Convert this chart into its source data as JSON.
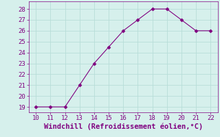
{
  "x": [
    10,
    11,
    12,
    13,
    14,
    15,
    16,
    17,
    18,
    19,
    20,
    21,
    22
  ],
  "y": [
    19,
    19,
    19,
    21,
    23,
    24.5,
    26,
    27,
    28,
    28,
    27,
    26,
    26
  ],
  "line_color": "#800080",
  "marker": "D",
  "marker_size": 2.5,
  "bg_color": "#d6f0ec",
  "grid_color": "#b8ddd8",
  "xlabel": "Windchill (Refroidissement éolien,°C)",
  "xlabel_color": "#800080",
  "tick_color": "#800080",
  "spine_color": "#800080",
  "xlim": [
    9.5,
    22.5
  ],
  "ylim": [
    18.5,
    28.7
  ],
  "xticks": [
    10,
    11,
    12,
    13,
    14,
    15,
    16,
    17,
    18,
    19,
    20,
    21,
    22
  ],
  "yticks": [
    19,
    20,
    21,
    22,
    23,
    24,
    25,
    26,
    27,
    28
  ],
  "xlabel_fontsize": 7.5,
  "tick_fontsize": 6.5,
  "linewidth": 0.8
}
